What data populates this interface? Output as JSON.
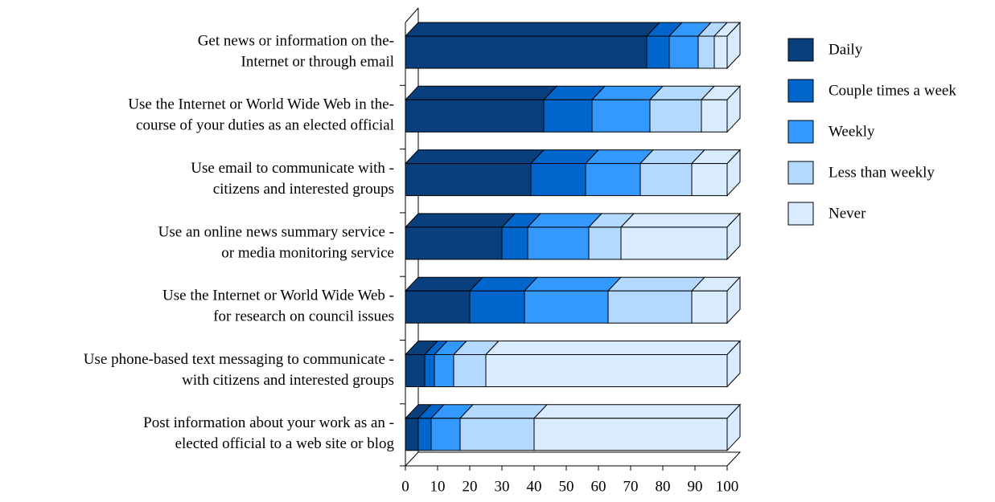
{
  "chart_data": {
    "type": "bar3d_stacked_horizontal",
    "categories": [
      [
        "Get news or information on the-",
        "Internet or through email"
      ],
      [
        "Use the Internet or World Wide Web in the-",
        "course of your duties as an elected official"
      ],
      [
        "Use email to communicate with -",
        "citizens and interested groups"
      ],
      [
        "Use an online news summary service -",
        "or media monitoring service"
      ],
      [
        "Use the Internet or World Wide Web -",
        "for research on council issues"
      ],
      [
        "Use phone-based text messaging to communicate -",
        "with citizens and interested groups"
      ],
      [
        "Post information about your work as an -",
        "elected official to a web site or blog"
      ]
    ],
    "series": [
      {
        "name": "Daily",
        "color": "#0a3f7d",
        "values": [
          75,
          43,
          39,
          30,
          20,
          6,
          4
        ]
      },
      {
        "name": "Couple times a week",
        "color": "#0066cc",
        "values": [
          7,
          15,
          17,
          8,
          17,
          3,
          4
        ]
      },
      {
        "name": "Weekly",
        "color": "#3399ff",
        "values": [
          9,
          18,
          17,
          19,
          26,
          6,
          9
        ]
      },
      {
        "name": "Less than weekly",
        "color": "#b3d9ff",
        "values": [
          5,
          16,
          16,
          10,
          26,
          10,
          23
        ]
      },
      {
        "name": "Never",
        "color": "#d9ecff",
        "values": [
          4,
          8,
          11,
          33,
          11,
          75,
          60
        ]
      }
    ],
    "xlim": [
      0,
      100
    ],
    "xticks": [
      0,
      10,
      20,
      30,
      40,
      50,
      60,
      70,
      80,
      90,
      100
    ],
    "legend": "right"
  }
}
